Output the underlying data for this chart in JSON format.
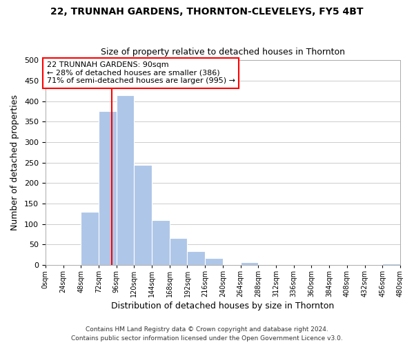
{
  "title1": "22, TRUNNAH GARDENS, THORNTON-CLEVELEYS, FY5 4BT",
  "title2": "Size of property relative to detached houses in Thornton",
  "xlabel": "Distribution of detached houses by size in Thornton",
  "ylabel": "Number of detached properties",
  "footer1": "Contains HM Land Registry data © Crown copyright and database right 2024.",
  "footer2": "Contains public sector information licensed under the Open Government Licence v3.0.",
  "bin_edges": [
    0,
    24,
    48,
    72,
    96,
    120,
    144,
    168,
    192,
    216,
    240,
    264,
    288,
    312,
    336,
    360,
    384,
    408,
    432,
    456,
    480
  ],
  "bin_labels": [
    "0sqm",
    "24sqm",
    "48sqm",
    "72sqm",
    "96sqm",
    "120sqm",
    "144sqm",
    "168sqm",
    "192sqm",
    "216sqm",
    "240sqm",
    "264sqm",
    "288sqm",
    "312sqm",
    "336sqm",
    "360sqm",
    "384sqm",
    "408sqm",
    "432sqm",
    "456sqm",
    "480sqm"
  ],
  "counts": [
    0,
    0,
    130,
    375,
    415,
    245,
    110,
    65,
    33,
    17,
    0,
    6,
    0,
    0,
    0,
    0,
    0,
    0,
    0,
    3
  ],
  "bar_color": "#aec6e8",
  "bar_edgecolor": "white",
  "grid_color": "#cccccc",
  "vline_x": 90,
  "vline_color": "red",
  "annotation_title": "22 TRUNNAH GARDENS: 90sqm",
  "annotation_line1": "← 28% of detached houses are smaller (386)",
  "annotation_line2": "71% of semi-detached houses are larger (995) →",
  "annotation_box_edgecolor": "red",
  "annotation_box_facecolor": "white",
  "ylim": [
    0,
    500
  ],
  "xlim_left": 0,
  "xlim_right": 480,
  "background_color": "#ffffff",
  "yticks": [
    0,
    50,
    100,
    150,
    200,
    250,
    300,
    350,
    400,
    450,
    500
  ]
}
